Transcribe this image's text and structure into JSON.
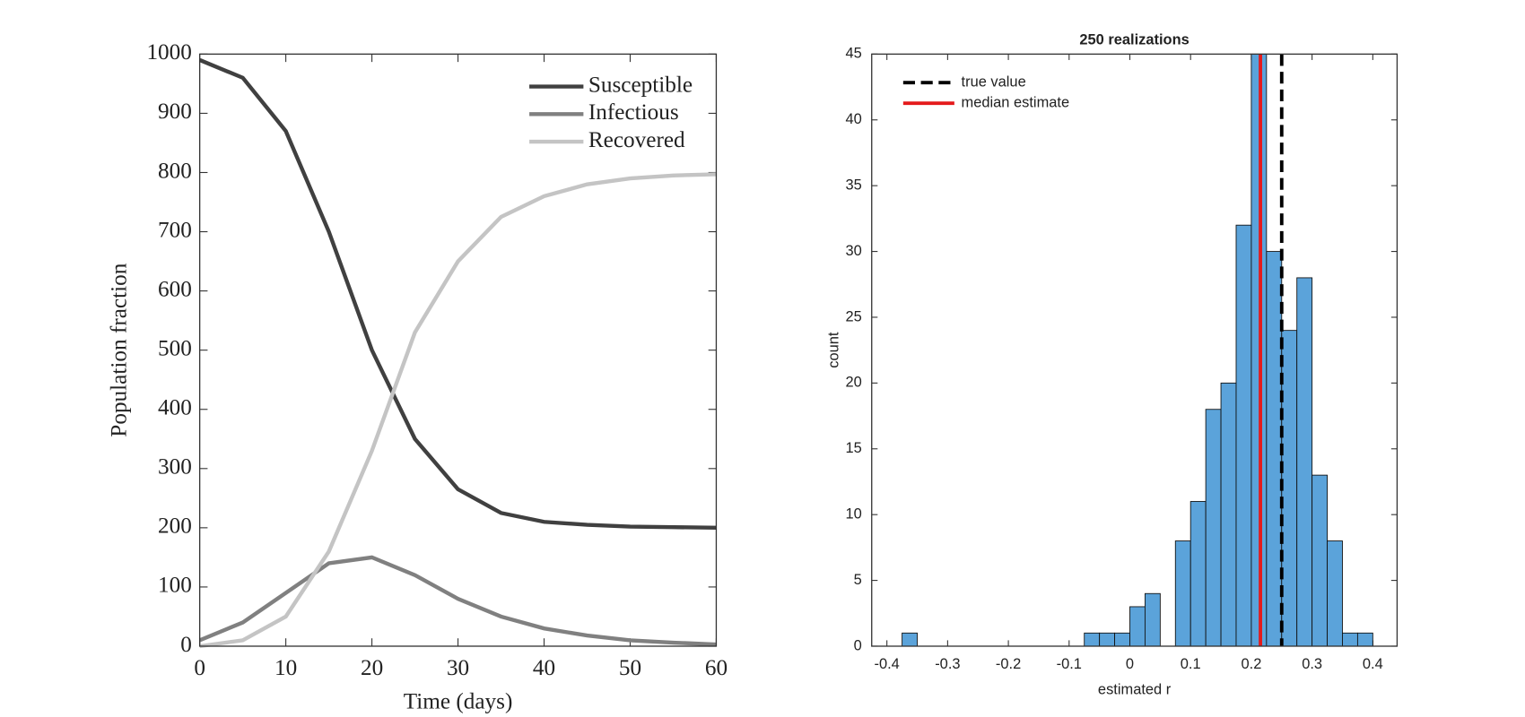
{
  "chart_data": [
    {
      "type": "line",
      "xlabel": "Time (days)",
      "ylabel": "Population fraction",
      "x": [
        0,
        5,
        10,
        15,
        20,
        25,
        30,
        35,
        40,
        45,
        50,
        55,
        60
      ],
      "series": [
        {
          "name": "Susceptible",
          "color": "#404040",
          "values": [
            990,
            960,
            870,
            700,
            500,
            350,
            265,
            225,
            210,
            205,
            202,
            201,
            200
          ]
        },
        {
          "name": "Infectious",
          "color": "#808080",
          "values": [
            10,
            40,
            90,
            140,
            150,
            120,
            80,
            50,
            30,
            18,
            10,
            6,
            3
          ]
        },
        {
          "name": "Recovered",
          "color": "#c4c4c4",
          "values": [
            0,
            10,
            50,
            160,
            330,
            530,
            650,
            725,
            760,
            780,
            790,
            795,
            797
          ]
        }
      ],
      "xlim": [
        0,
        60
      ],
      "xticks": [
        0,
        10,
        20,
        30,
        40,
        50,
        60
      ],
      "ylim": [
        0,
        1000
      ],
      "yticks": [
        0,
        100,
        200,
        300,
        400,
        500,
        600,
        700,
        800,
        900,
        1000
      ],
      "legend": "upper right"
    },
    {
      "type": "histogram",
      "title": "250 realizations",
      "xlabel": "estimated r",
      "ylabel": "count",
      "bins": [
        -0.375,
        -0.35,
        -0.325,
        -0.3,
        -0.275,
        -0.25,
        -0.225,
        -0.2,
        -0.175,
        -0.15,
        -0.125,
        -0.1,
        -0.075,
        -0.05,
        -0.025,
        0,
        0.025,
        0.05,
        0.075,
        0.1,
        0.125,
        0.15,
        0.175,
        0.2,
        0.225,
        0.25,
        0.275,
        0.3,
        0.325,
        0.35,
        0.375,
        0.4
      ],
      "counts": [
        1,
        0,
        0,
        0,
        0,
        0,
        0,
        0,
        0,
        0,
        0,
        0,
        1,
        1,
        1,
        3,
        4,
        0,
        8,
        11,
        18,
        20,
        32,
        45,
        30,
        24,
        28,
        13,
        8,
        1,
        1
      ],
      "color": "#5ba3da",
      "lines": [
        {
          "name": "true value",
          "value": 0.25,
          "color": "#000000",
          "dashed": true
        },
        {
          "name": "median estimate",
          "value": 0.215,
          "color": "#e41a1c",
          "dashed": false
        }
      ],
      "xlim": [
        -0.425,
        0.44
      ],
      "xticks": [
        -0.4,
        -0.3,
        -0.2,
        -0.1,
        0,
        0.1,
        0.2,
        0.3,
        0.4
      ],
      "ylim": [
        0,
        45
      ],
      "yticks": [
        0,
        5,
        10,
        15,
        20,
        25,
        30,
        35,
        40,
        45
      ],
      "legend": "upper left"
    }
  ]
}
